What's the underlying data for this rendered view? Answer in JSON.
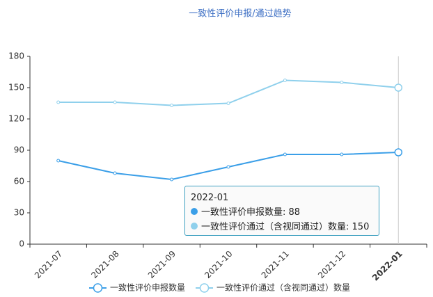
{
  "chart_data": {
    "type": "line",
    "title": "一致性评价申报/通过趋势",
    "categories": [
      "2021-07",
      "2021-08",
      "2021-09",
      "2021-10",
      "2021-11",
      "2021-12",
      "2022-01"
    ],
    "series": [
      {
        "name": "一致性评价申报数量",
        "color": "#3b9fe8",
        "values": [
          80,
          68,
          62,
          74,
          86,
          86,
          88
        ]
      },
      {
        "name": "一致性评价通过（含视同通过）数量",
        "color": "#8fd0ec",
        "values": [
          136,
          136,
          133,
          135,
          157,
          155,
          150
        ]
      }
    ],
    "ylim": [
      0,
      180
    ],
    "yticks": [
      0,
      30,
      60,
      90,
      120,
      150,
      180
    ]
  }
}
